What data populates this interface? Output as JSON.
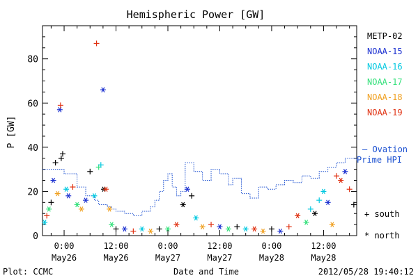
{
  "chart_data": {
    "type": "scatter",
    "title": "Hemispheric Power [GW]",
    "ylabel": "P [GW]",
    "xlabel": "Date and Time",
    "ylim": [
      0,
      95
    ],
    "xlim": [
      "2012-05-25 19:00",
      "2012-05-28 19:40"
    ],
    "y_ticks": [
      "0",
      "20",
      "40",
      "60",
      "80"
    ],
    "x_ticks": [
      {
        "time": "2012-05-26 00:00",
        "line1": "0:00",
        "line2": "May26"
      },
      {
        "time": "2012-05-26 12:00",
        "line1": "12:00",
        "line2": "May26"
      },
      {
        "time": "2012-05-27 00:00",
        "line1": "0:00",
        "line2": "May27"
      },
      {
        "time": "2012-05-27 12:00",
        "line1": "12:00",
        "line2": "May27"
      },
      {
        "time": "2012-05-28 00:00",
        "line1": "0:00",
        "line2": "May28"
      },
      {
        "time": "2012-05-28 12:00",
        "line1": "12:00",
        "line2": "May28"
      }
    ],
    "grid": false,
    "legend_position": "right",
    "series": [
      {
        "name": "METP-02",
        "color": "#000000"
      },
      {
        "name": "NOAA-15",
        "color": "#1a2fd0"
      },
      {
        "name": "NOAA-16",
        "color": "#00c8e0"
      },
      {
        "name": "NOAA-17",
        "color": "#33e07a"
      },
      {
        "name": "NOAA-18",
        "color": "#f0a020"
      },
      {
        "name": "NOAA-19",
        "color": "#e03010"
      }
    ],
    "ovation": {
      "label_line1": "– Ovation",
      "label_line2": "Prime HPI",
      "color": "#1a4fd0",
      "x": [
        "2012-05-25 19:00",
        "2012-05-26 00:00",
        "2012-05-26 03:00",
        "2012-05-26 05:00",
        "2012-05-26 07:00",
        "2012-05-26 08:00",
        "2012-05-26 09:00",
        "2012-05-26 10:00",
        "2012-05-26 11:00",
        "2012-05-26 12:00",
        "2012-05-26 14:00",
        "2012-05-26 16:00",
        "2012-05-26 18:00",
        "2012-05-26 20:00",
        "2012-05-26 21:00",
        "2012-05-26 22:00",
        "2012-05-26 23:00",
        "2012-05-27 00:00",
        "2012-05-27 01:00",
        "2012-05-27 02:00",
        "2012-05-27 03:00",
        "2012-05-27 04:00",
        "2012-05-27 06:00",
        "2012-05-27 08:00",
        "2012-05-27 10:00",
        "2012-05-27 12:00",
        "2012-05-27 14:00",
        "2012-05-27 15:00",
        "2012-05-27 17:00",
        "2012-05-27 19:00",
        "2012-05-27 21:00",
        "2012-05-27 23:00",
        "2012-05-28 01:00",
        "2012-05-28 03:00",
        "2012-05-28 05:00",
        "2012-05-28 07:00",
        "2012-05-28 09:00",
        "2012-05-28 11:00",
        "2012-05-28 13:00",
        "2012-05-28 15:00",
        "2012-05-28 17:00",
        "2012-05-28 19:40"
      ],
      "y": [
        30,
        28,
        22,
        18,
        16,
        14,
        14,
        13,
        12,
        11,
        10,
        9,
        11,
        13,
        16,
        20,
        25,
        28,
        22,
        18,
        20,
        33,
        29,
        25,
        30,
        28,
        23,
        26,
        19,
        17,
        22,
        21,
        23,
        25,
        24,
        27,
        26,
        29,
        31,
        33,
        35,
        34
      ]
    },
    "symbols": [
      {
        "label": "+ south"
      },
      {
        "label": "* north"
      }
    ],
    "points": [
      {
        "t": "2012-05-25 19:30",
        "y": 6,
        "s": "NOAA-16",
        "m": "*"
      },
      {
        "t": "2012-05-25 20:00",
        "y": 9,
        "s": "NOAA-19",
        "m": "+"
      },
      {
        "t": "2012-05-25 20:30",
        "y": 12,
        "s": "NOAA-17",
        "m": "*"
      },
      {
        "t": "2012-05-25 21:00",
        "y": 15,
        "s": "METP-02",
        "m": "+"
      },
      {
        "t": "2012-05-25 21:30",
        "y": 25,
        "s": "NOAA-15",
        "m": "*"
      },
      {
        "t": "2012-05-25 22:00",
        "y": 33,
        "s": "METP-02",
        "m": "+"
      },
      {
        "t": "2012-05-25 22:30",
        "y": 19,
        "s": "NOAA-18",
        "m": "*"
      },
      {
        "t": "2012-05-25 23:00",
        "y": 57,
        "s": "NOAA-15",
        "m": "*"
      },
      {
        "t": "2012-05-25 23:10",
        "y": 59,
        "s": "NOAA-19",
        "m": "+"
      },
      {
        "t": "2012-05-25 23:20",
        "y": 35,
        "s": "METP-02",
        "m": "+"
      },
      {
        "t": "2012-05-25 23:40",
        "y": 37,
        "s": "METP-02",
        "m": "+"
      },
      {
        "t": "2012-05-26 00:30",
        "y": 21,
        "s": "NOAA-16",
        "m": "*"
      },
      {
        "t": "2012-05-26 01:00",
        "y": 18,
        "s": "NOAA-15",
        "m": "*"
      },
      {
        "t": "2012-05-26 02:00",
        "y": 22,
        "s": "NOAA-19",
        "m": "+"
      },
      {
        "t": "2012-05-26 03:00",
        "y": 14,
        "s": "NOAA-17",
        "m": "*"
      },
      {
        "t": "2012-05-26 04:00",
        "y": 12,
        "s": "NOAA-18",
        "m": "*"
      },
      {
        "t": "2012-05-26 05:00",
        "y": 16,
        "s": "NOAA-15",
        "m": "*"
      },
      {
        "t": "2012-05-26 06:00",
        "y": 29,
        "s": "METP-02",
        "m": "+"
      },
      {
        "t": "2012-05-26 07:00",
        "y": 18,
        "s": "NOAA-16",
        "m": "*"
      },
      {
        "t": "2012-05-26 07:30",
        "y": 87,
        "s": "NOAA-19",
        "m": "+"
      },
      {
        "t": "2012-05-26 08:00",
        "y": 31,
        "s": "NOAA-17",
        "m": "+"
      },
      {
        "t": "2012-05-26 08:30",
        "y": 32,
        "s": "NOAA-16",
        "m": "+"
      },
      {
        "t": "2012-05-26 09:00",
        "y": 66,
        "s": "NOAA-15",
        "m": "*"
      },
      {
        "t": "2012-05-26 09:10",
        "y": 21,
        "s": "METP-02",
        "m": "*"
      },
      {
        "t": "2012-05-26 09:40",
        "y": 21,
        "s": "NOAA-19",
        "m": "*"
      },
      {
        "t": "2012-05-26 10:30",
        "y": 12,
        "s": "NOAA-18",
        "m": "*"
      },
      {
        "t": "2012-05-26 11:00",
        "y": 5,
        "s": "NOAA-17",
        "m": "*"
      },
      {
        "t": "2012-05-26 12:00",
        "y": 3,
        "s": "METP-02",
        "m": "+"
      },
      {
        "t": "2012-05-26 14:00",
        "y": 3,
        "s": "NOAA-15",
        "m": "*"
      },
      {
        "t": "2012-05-26 16:00",
        "y": 2,
        "s": "NOAA-19",
        "m": "+"
      },
      {
        "t": "2012-05-26 18:00",
        "y": 3,
        "s": "NOAA-16",
        "m": "*"
      },
      {
        "t": "2012-05-26 20:00",
        "y": 2,
        "s": "NOAA-18",
        "m": "*"
      },
      {
        "t": "2012-05-26 22:00",
        "y": 3,
        "s": "METP-02",
        "m": "+"
      },
      {
        "t": "2012-05-27 00:00",
        "y": 3,
        "s": "NOAA-17",
        "m": "*"
      },
      {
        "t": "2012-05-27 02:00",
        "y": 5,
        "s": "NOAA-19",
        "m": "*"
      },
      {
        "t": "2012-05-27 03:30",
        "y": 14,
        "s": "METP-02",
        "m": "*"
      },
      {
        "t": "2012-05-27 04:30",
        "y": 21,
        "s": "NOAA-15",
        "m": "*"
      },
      {
        "t": "2012-05-27 05:30",
        "y": 18,
        "s": "METP-02",
        "m": "+"
      },
      {
        "t": "2012-05-27 06:30",
        "y": 8,
        "s": "NOAA-16",
        "m": "*"
      },
      {
        "t": "2012-05-27 08:00",
        "y": 4,
        "s": "NOAA-18",
        "m": "*"
      },
      {
        "t": "2012-05-27 10:00",
        "y": 5,
        "s": "NOAA-19",
        "m": "+"
      },
      {
        "t": "2012-05-27 12:00",
        "y": 4,
        "s": "NOAA-15",
        "m": "*"
      },
      {
        "t": "2012-05-27 14:00",
        "y": 3,
        "s": "NOAA-17",
        "m": "*"
      },
      {
        "t": "2012-05-27 16:00",
        "y": 4,
        "s": "METP-02",
        "m": "+"
      },
      {
        "t": "2012-05-27 18:00",
        "y": 3,
        "s": "NOAA-16",
        "m": "*"
      },
      {
        "t": "2012-05-27 20:00",
        "y": 3,
        "s": "NOAA-19",
        "m": "*"
      },
      {
        "t": "2012-05-27 22:00",
        "y": 2,
        "s": "NOAA-18",
        "m": "*"
      },
      {
        "t": "2012-05-28 00:00",
        "y": 3,
        "s": "METP-02",
        "m": "+"
      },
      {
        "t": "2012-05-28 02:00",
        "y": 2,
        "s": "NOAA-15",
        "m": "*"
      },
      {
        "t": "2012-05-28 04:00",
        "y": 4,
        "s": "NOAA-19",
        "m": "+"
      },
      {
        "t": "2012-05-28 06:00",
        "y": 9,
        "s": "NOAA-19",
        "m": "*"
      },
      {
        "t": "2012-05-28 08:00",
        "y": 6,
        "s": "NOAA-17",
        "m": "*"
      },
      {
        "t": "2012-05-28 09:00",
        "y": 12,
        "s": "NOAA-16",
        "m": "+"
      },
      {
        "t": "2012-05-28 10:00",
        "y": 10,
        "s": "METP-02",
        "m": "*"
      },
      {
        "t": "2012-05-28 11:00",
        "y": 16,
        "s": "NOAA-16",
        "m": "+"
      },
      {
        "t": "2012-05-28 12:00",
        "y": 20,
        "s": "NOAA-16",
        "m": "*"
      },
      {
        "t": "2012-05-28 13:00",
        "y": 15,
        "s": "NOAA-15",
        "m": "*"
      },
      {
        "t": "2012-05-28 14:00",
        "y": 5,
        "s": "NOAA-18",
        "m": "*"
      },
      {
        "t": "2012-05-28 15:00",
        "y": 27,
        "s": "NOAA-19",
        "m": "+"
      },
      {
        "t": "2012-05-28 16:00",
        "y": 25,
        "s": "NOAA-19",
        "m": "*"
      },
      {
        "t": "2012-05-28 17:00",
        "y": 29,
        "s": "NOAA-15",
        "m": "*"
      },
      {
        "t": "2012-05-28 18:00",
        "y": 21,
        "s": "NOAA-19",
        "m": "+"
      },
      {
        "t": "2012-05-28 19:00",
        "y": 14,
        "s": "METP-02",
        "m": "+"
      }
    ]
  },
  "footer": {
    "left": "Plot: CCMC",
    "right": "2012/05/28 19:40:12"
  }
}
